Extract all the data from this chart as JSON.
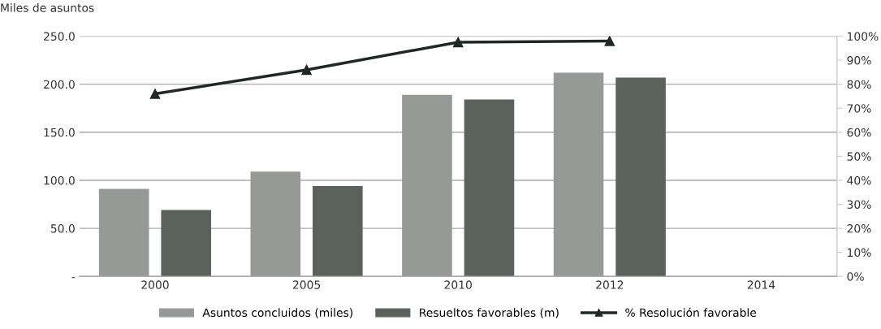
{
  "chart_data": {
    "type": "bar",
    "ylabel": "Miles de asuntos",
    "categories": [
      "2000",
      "2005",
      "2010",
      "2012",
      "2014"
    ],
    "series": [
      {
        "name": "Asuntos concluidos (miles)",
        "color": "#969a97",
        "values": [
          91,
          109,
          189,
          212,
          null
        ]
      },
      {
        "name": "Resueltos favorables (m)",
        "color": "#5b625b",
        "values": [
          69,
          94,
          184,
          207,
          null
        ]
      },
      {
        "name": "% Resolución favorable",
        "type": "line",
        "axis": "y2",
        "color": "#1f2824",
        "marker": "triangle",
        "values": [
          76,
          86,
          97.5,
          98,
          null
        ]
      }
    ],
    "ylim": [
      0,
      250
    ],
    "yticks": [
      {
        "value": 0,
        "label": "-"
      },
      {
        "value": 50,
        "label": "50.0"
      },
      {
        "value": 100,
        "label": "100.0"
      },
      {
        "value": 150,
        "label": "150.0"
      },
      {
        "value": 200,
        "label": "200.0"
      },
      {
        "value": 250,
        "label": "250.0"
      }
    ],
    "y2lim": [
      0,
      100
    ],
    "y2ticks": [
      {
        "value": 0,
        "label": "0%"
      },
      {
        "value": 10,
        "label": "10%"
      },
      {
        "value": 20,
        "label": "20%"
      },
      {
        "value": 30,
        "label": "30%"
      },
      {
        "value": 40,
        "label": "40%"
      },
      {
        "value": 50,
        "label": "50%"
      },
      {
        "value": 60,
        "label": "60%"
      },
      {
        "value": 70,
        "label": "70%"
      },
      {
        "value": 80,
        "label": "80%"
      },
      {
        "value": 90,
        "label": "90%"
      },
      {
        "value": 100,
        "label": "100%"
      }
    ],
    "grid": "y",
    "legend": "bottom"
  }
}
